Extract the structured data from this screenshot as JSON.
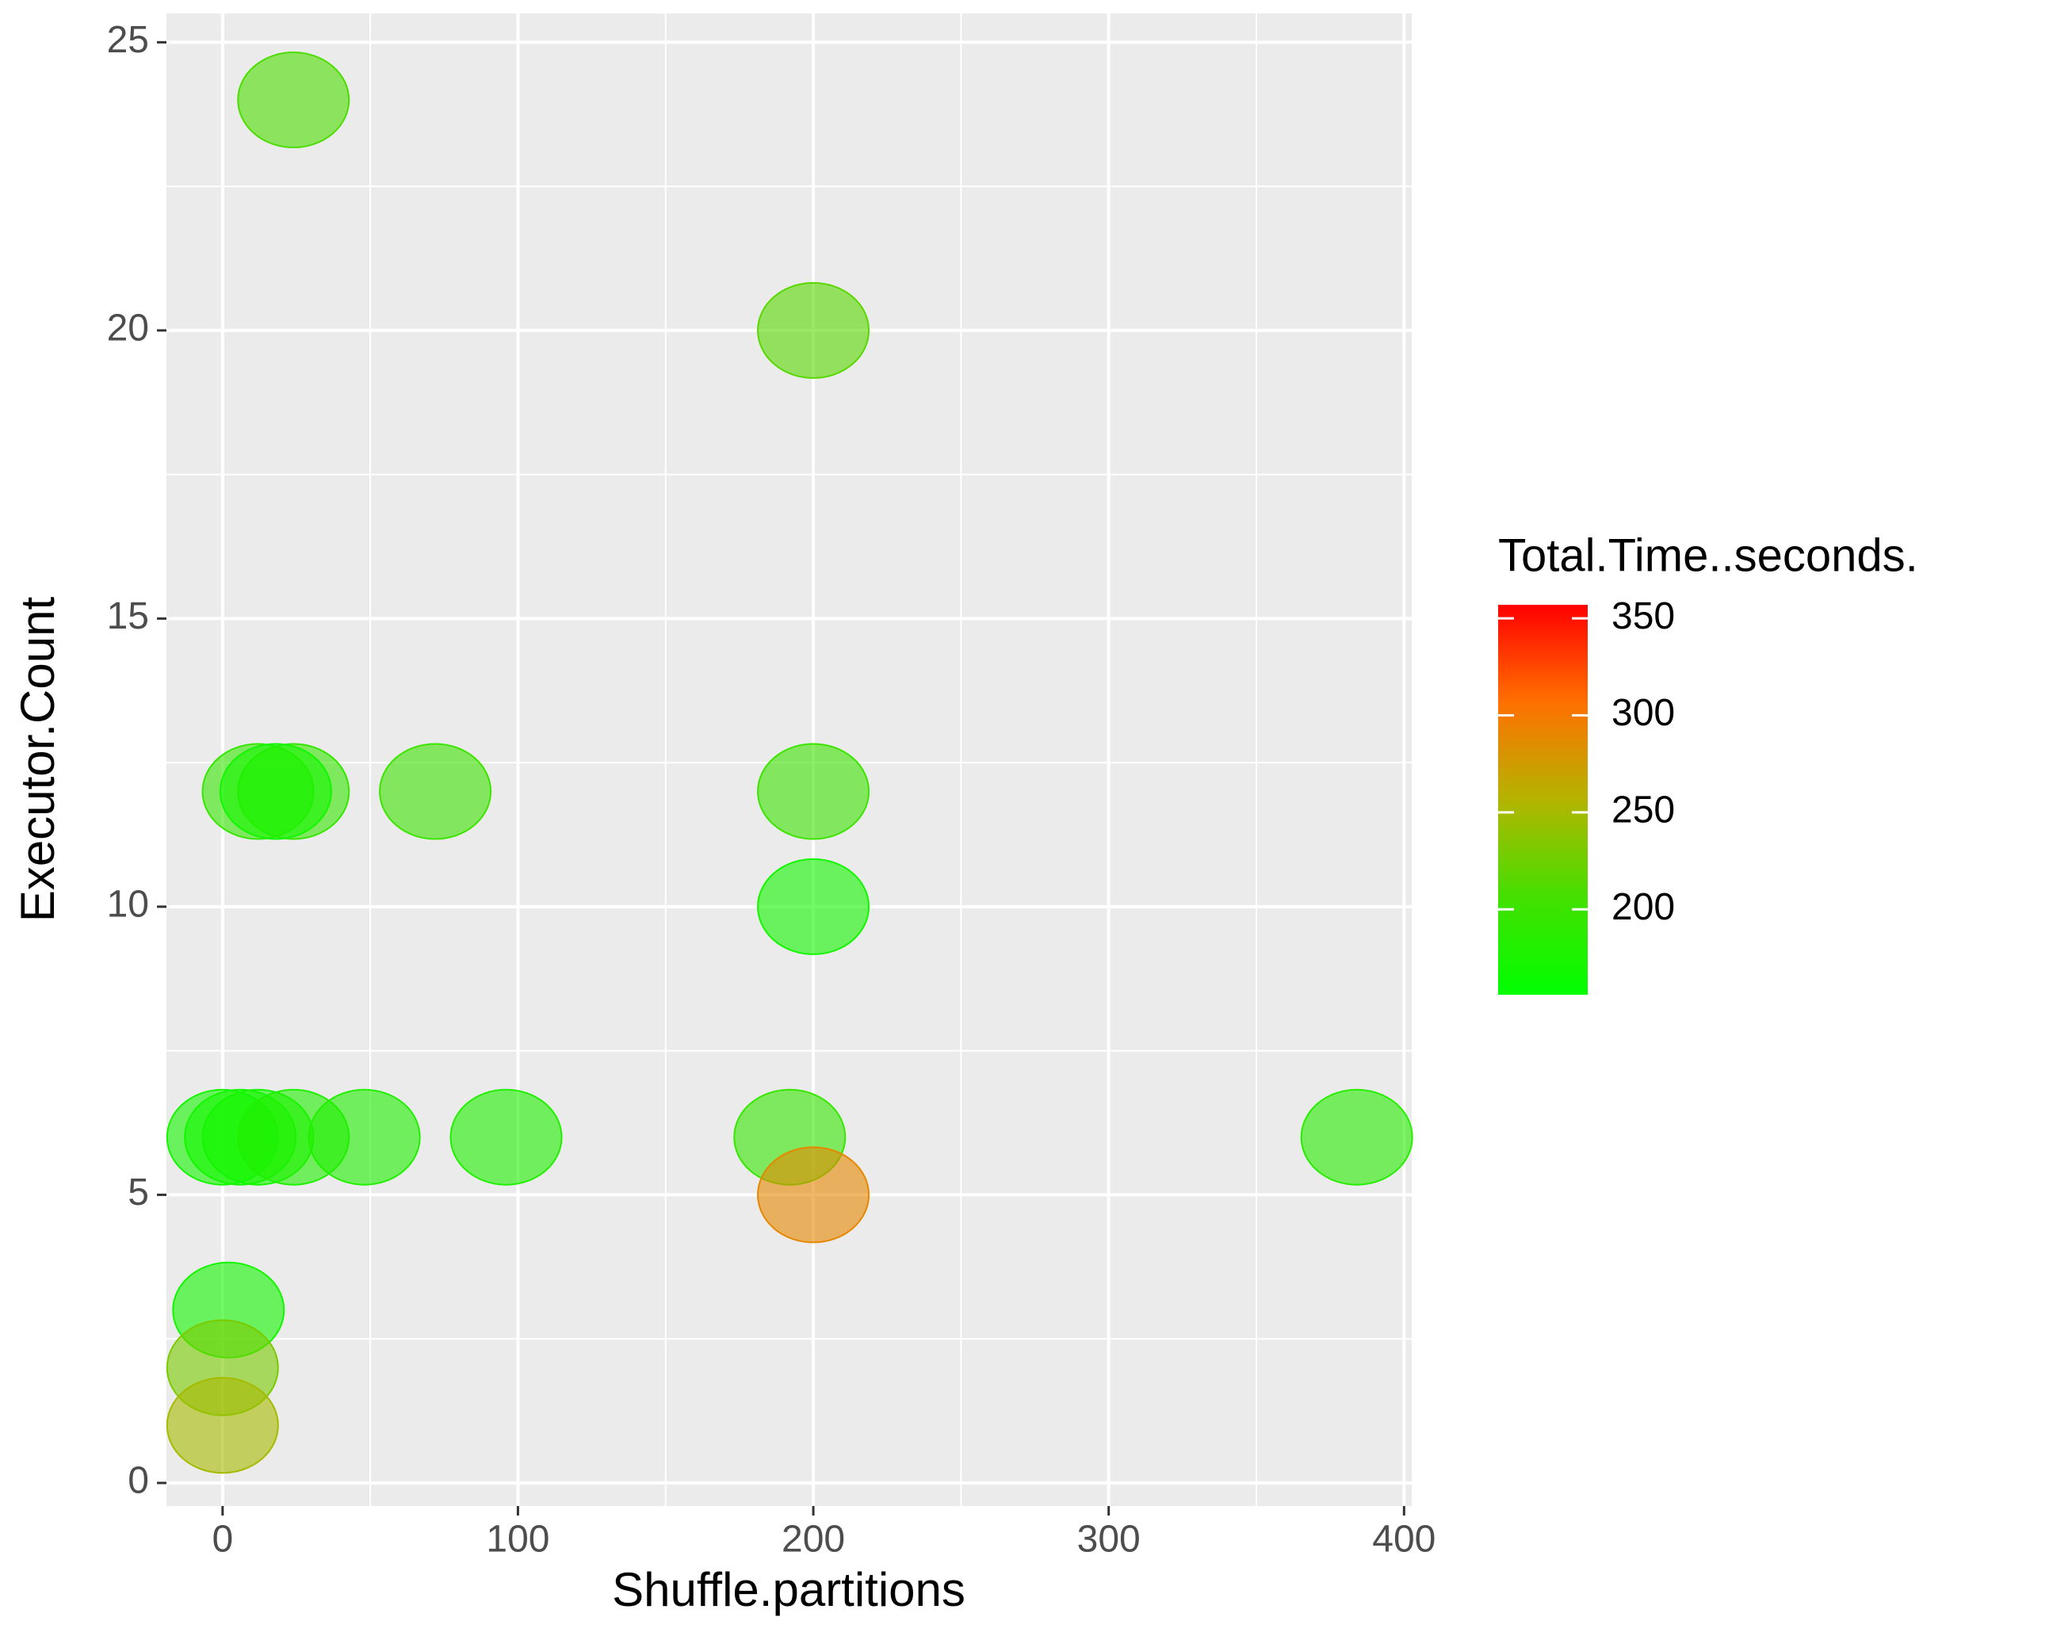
{
  "chart_data": {
    "type": "scatter",
    "x_label": "Shuffle.partitions",
    "y_label": "Executor.Count",
    "x": [
      24,
      200,
      12,
      24,
      18,
      72,
      200,
      200,
      0,
      6,
      12,
      24,
      48,
      96,
      192,
      384,
      200,
      2,
      0,
      0
    ],
    "y": [
      24,
      20,
      12,
      12,
      12,
      12,
      12,
      10,
      6,
      6,
      6,
      6,
      6,
      6,
      6,
      6,
      5,
      3,
      2,
      1
    ],
    "values": [
      210,
      215,
      195,
      195,
      170,
      200,
      200,
      170,
      170,
      170,
      170,
      180,
      180,
      180,
      195,
      185,
      290,
      170,
      230,
      250
    ],
    "xlim": [
      -19,
      402.6
    ],
    "ylim": [
      -0.4,
      25.5
    ],
    "xticks": [
      0,
      100,
      200,
      300,
      400
    ],
    "yticks": [
      0,
      5,
      10,
      15,
      20,
      25
    ],
    "grid": true,
    "color_label": "Total.Time..seconds.",
    "color_lim": [
      156,
      357
    ],
    "color_ticks": [
      200,
      250,
      300,
      350
    ],
    "colors": [
      "#00ff00",
      "#44e000",
      "#b4b400",
      "#ff7000",
      "#ff0000"
    ]
  }
}
